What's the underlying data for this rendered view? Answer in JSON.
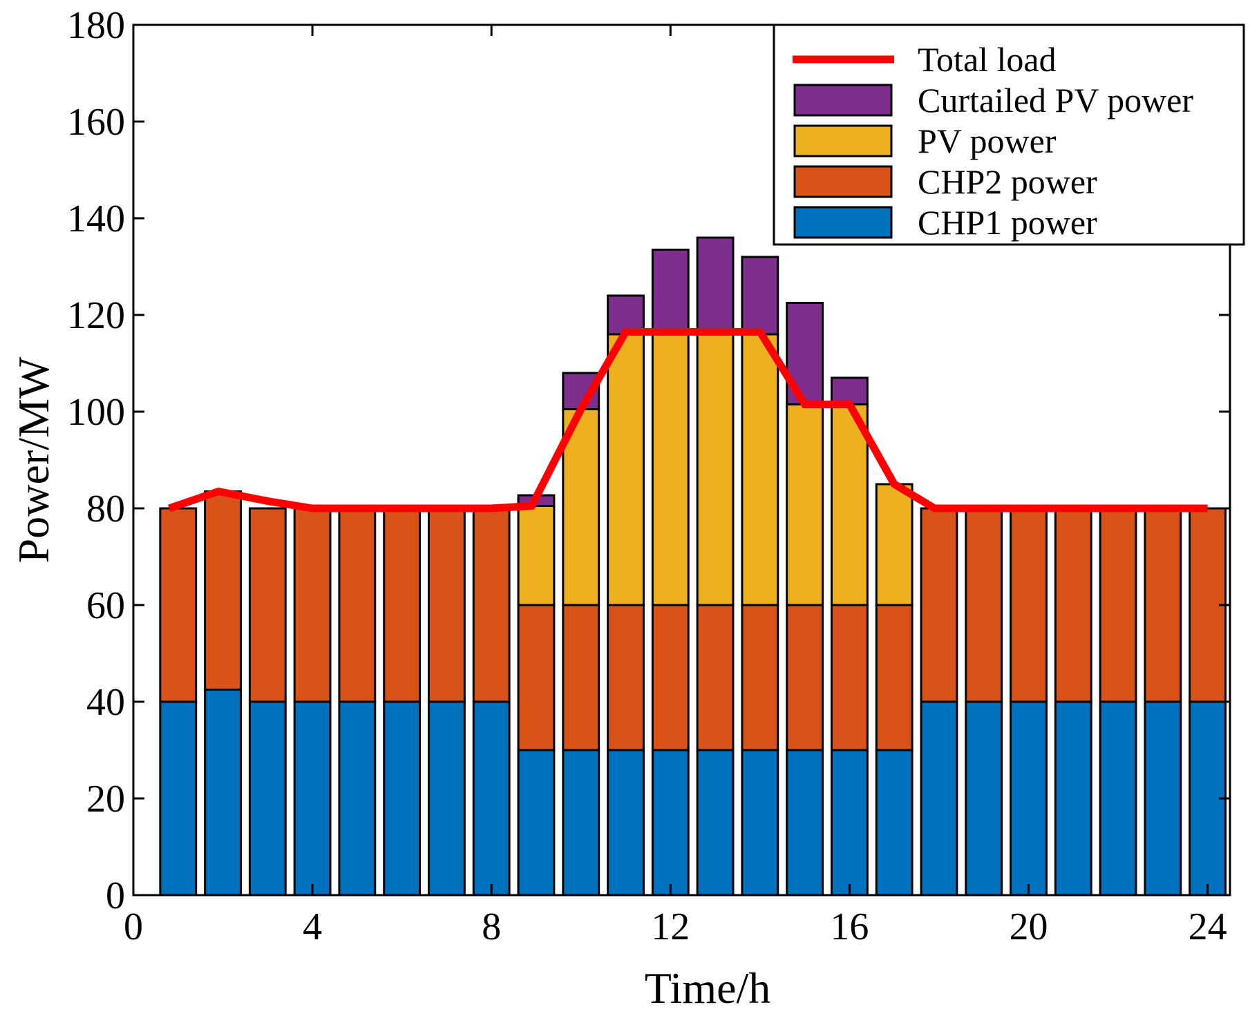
{
  "chart_data": {
    "type": "bar",
    "stacked": true,
    "xlabel": "Time/h",
    "ylabel": "Power/MW",
    "xlim": [
      0,
      24.5
    ],
    "ylim": [
      0,
      180
    ],
    "xticks": [
      0,
      4,
      8,
      12,
      16,
      20,
      24
    ],
    "yticks": [
      0,
      20,
      40,
      60,
      80,
      100,
      120,
      140,
      160,
      180
    ],
    "grid": false,
    "legend_position": "top-right",
    "x": [
      1,
      2,
      3,
      4,
      5,
      6,
      7,
      8,
      9,
      10,
      11,
      12,
      13,
      14,
      15,
      16,
      17,
      18,
      19,
      20,
      21,
      22,
      23,
      24
    ],
    "series": [
      {
        "name": "CHP1 power",
        "color": "#0072BD",
        "values": [
          40,
          42.5,
          40,
          40,
          40,
          40,
          40,
          40,
          30,
          30,
          30,
          30,
          30,
          30,
          30,
          30,
          30,
          40,
          40,
          40,
          40,
          40,
          40,
          40
        ]
      },
      {
        "name": "CHP2 power",
        "color": "#D95319",
        "values": [
          40,
          41,
          40,
          40,
          40,
          40,
          40,
          40,
          30,
          30,
          30,
          30,
          30,
          30,
          30,
          30,
          30,
          40,
          40,
          40,
          40,
          40,
          40,
          40
        ]
      },
      {
        "name": "PV power",
        "color": "#EDB120",
        "values": [
          0,
          0,
          0,
          0,
          0,
          0,
          0,
          0,
          20.5,
          40.5,
          56,
          56,
          56,
          56,
          41.5,
          41.5,
          25,
          0,
          0,
          0,
          0,
          0,
          0,
          0
        ]
      },
      {
        "name": "Curtailed PV power",
        "color": "#7E2F8E",
        "values": [
          0,
          0,
          0,
          0,
          0,
          0,
          0,
          0,
          2.2,
          7.5,
          8,
          17.5,
          20,
          16,
          21,
          5.5,
          0,
          0,
          0,
          0,
          0,
          0,
          0,
          0
        ]
      }
    ],
    "line": {
      "name": "Total load",
      "color": "#FF0000",
      "x": [
        0.8,
        1.9,
        3,
        4,
        5,
        6,
        7,
        8,
        8.9,
        10,
        11,
        12,
        13,
        14,
        15,
        16,
        17,
        17.9,
        19,
        20,
        21,
        22,
        23,
        24
      ],
      "values": [
        80,
        83.5,
        81.5,
        80,
        80,
        80,
        80,
        80,
        80.5,
        100.5,
        116.5,
        116.5,
        116.5,
        116.5,
        101.5,
        101.5,
        85,
        80,
        80,
        80,
        80,
        80,
        80,
        80
      ]
    }
  }
}
